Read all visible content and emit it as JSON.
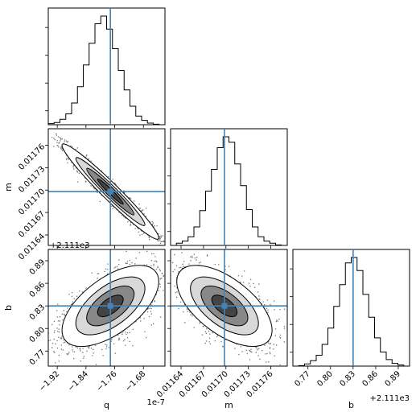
{
  "chart_data": {
    "type": "corner",
    "colors": {
      "truth": "#4682b4",
      "points": "#000000",
      "outline": "#000000"
    },
    "parameters": [
      {
        "name": "q",
        "label": "q",
        "offset_label": "1e-7",
        "truth": -1.772,
        "range": [
          -1.945,
          -1.62
        ],
        "ticks": [
          -1.92,
          -1.84,
          -1.76,
          -1.68
        ],
        "tick_labels": [
          "−1.92",
          "−1.84",
          "−1.76",
          "−1.68"
        ]
      },
      {
        "name": "m",
        "label": "m",
        "offset_label": "",
        "truth": 0.011698,
        "range": [
          0.011626,
          0.011782
        ],
        "ticks": [
          0.01164,
          0.01167,
          0.0117,
          0.01173,
          0.01176
        ],
        "tick_labels": [
          "0.01164",
          "0.01167",
          "0.01170",
          "0.01173",
          "0.01176"
        ]
      },
      {
        "name": "b",
        "label": "b",
        "offset_label": "+2.111e3",
        "truth": 0.83,
        "range": [
          0.75,
          0.905
        ],
        "ticks": [
          0.77,
          0.8,
          0.83,
          0.86,
          0.89
        ],
        "tick_labels": [
          "0.77",
          "0.80",
          "0.83",
          "0.86",
          "0.89"
        ]
      }
    ],
    "histograms": [
      {
        "param": "q",
        "counts": [
          0.01,
          0.02,
          0.05,
          0.1,
          0.2,
          0.35,
          0.55,
          0.75,
          0.93,
          1.0,
          0.88,
          0.7,
          0.5,
          0.32,
          0.17,
          0.08,
          0.04,
          0.015,
          0.005,
          0.0
        ]
      },
      {
        "param": "m",
        "counts": [
          0.0,
          0.02,
          0.04,
          0.08,
          0.17,
          0.32,
          0.5,
          0.7,
          0.9,
          1.0,
          0.95,
          0.75,
          0.55,
          0.33,
          0.17,
          0.08,
          0.04,
          0.02,
          0.005,
          0.0
        ]
      },
      {
        "param": "b",
        "counts": [
          0.0,
          0.005,
          0.02,
          0.05,
          0.1,
          0.2,
          0.35,
          0.55,
          0.75,
          0.95,
          1.0,
          0.88,
          0.66,
          0.45,
          0.26,
          0.13,
          0.06,
          0.025,
          0.01,
          0.0
        ]
      }
    ],
    "joint": [
      {
        "x": "q",
        "y": "m",
        "sx": 0.055,
        "sy": 2.6e-05,
        "rho": -0.97
      },
      {
        "x": "q",
        "y": "b",
        "sx": 0.055,
        "sy": 0.022,
        "rho": 0.6
      },
      {
        "x": "m",
        "y": "b",
        "sx": 2.6e-05,
        "sy": 0.022,
        "rho": -0.6
      }
    ]
  }
}
